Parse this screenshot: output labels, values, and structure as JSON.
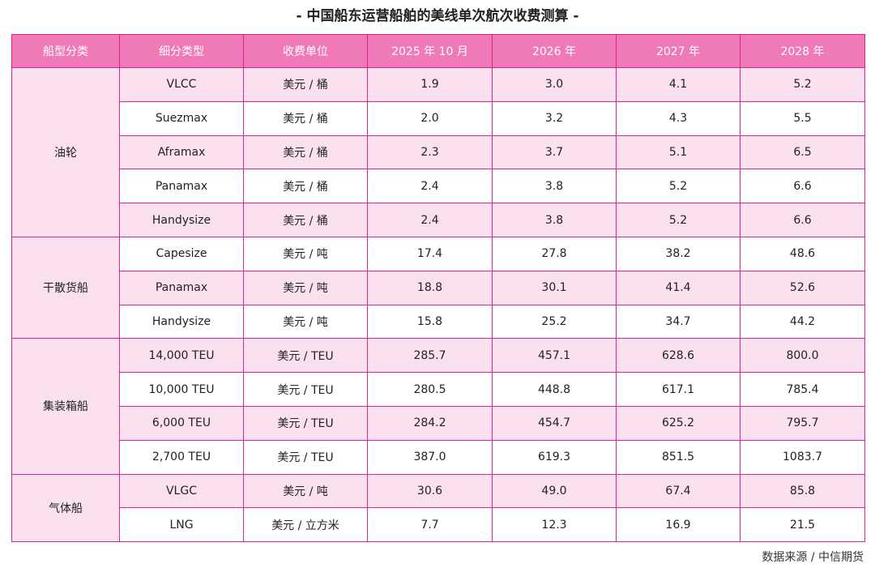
{
  "title": "- 中国船东运营船舶的美线单次航次收费测算 -",
  "headers": [
    "船型分类",
    "细分类型",
    "收费单位",
    "2025 年 10 月",
    "2026 年",
    "2027 年",
    "2028 年"
  ],
  "groups": [
    {
      "category": "油轮",
      "rows": [
        {
          "type": "VLCC",
          "unit": "美元 / 桶",
          "v2025": "1.9",
          "v2026": "3.0",
          "v2027": "4.1",
          "v2028": "5.2"
        },
        {
          "type": "Suezmax",
          "unit": "美元 / 桶",
          "v2025": "2.0",
          "v2026": "3.2",
          "v2027": "4.3",
          "v2028": "5.5"
        },
        {
          "type": "Aframax",
          "unit": "美元 / 桶",
          "v2025": "2.3",
          "v2026": "3.7",
          "v2027": "5.1",
          "v2028": "6.5"
        },
        {
          "type": "Panamax",
          "unit": "美元 / 桶",
          "v2025": "2.4",
          "v2026": "3.8",
          "v2027": "5.2",
          "v2028": "6.6"
        },
        {
          "type": "Handysize",
          "unit": "美元 / 桶",
          "v2025": "2.4",
          "v2026": "3.8",
          "v2027": "5.2",
          "v2028": "6.6"
        }
      ]
    },
    {
      "category": "干散货船",
      "rows": [
        {
          "type": "Capesize",
          "unit": "美元 / 吨",
          "v2025": "17.4",
          "v2026": "27.8",
          "v2027": "38.2",
          "v2028": "48.6"
        },
        {
          "type": "Panamax",
          "unit": "美元 / 吨",
          "v2025": "18.8",
          "v2026": "30.1",
          "v2027": "41.4",
          "v2028": "52.6"
        },
        {
          "type": "Handysize",
          "unit": "美元 / 吨",
          "v2025": "15.8",
          "v2026": "25.2",
          "v2027": "34.7",
          "v2028": "44.2"
        }
      ]
    },
    {
      "category": "集装箱船",
      "rows": [
        {
          "type": "14,000 TEU",
          "unit": "美元 / TEU",
          "v2025": "285.7",
          "v2026": "457.1",
          "v2027": "628.6",
          "v2028": "800.0"
        },
        {
          "type": "10,000 TEU",
          "unit": "美元 / TEU",
          "v2025": "280.5",
          "v2026": "448.8",
          "v2027": "617.1",
          "v2028": "785.4"
        },
        {
          "type": "6,000 TEU",
          "unit": "美元 / TEU",
          "v2025": "284.2",
          "v2026": "454.7",
          "v2027": "625.2",
          "v2028": "795.7"
        },
        {
          "type": "2,700 TEU",
          "unit": "美元 / TEU",
          "v2025": "387.0",
          "v2026": "619.3",
          "v2027": "851.5",
          "v2028": "1083.7"
        }
      ]
    },
    {
      "category": "气体船",
      "rows": [
        {
          "type": "VLGC",
          "unit": "美元 / 吨",
          "v2025": "30.6",
          "v2026": "49.0",
          "v2027": "67.4",
          "v2028": "85.8"
        },
        {
          "type": "LNG",
          "unit": "美元 / 立方米",
          "v2025": "7.7",
          "v2026": "12.3",
          "v2027": "16.9",
          "v2028": "21.5"
        }
      ]
    }
  ],
  "source": "数据来源 / 中信期货",
  "colors": {
    "header_bg": "#f07ab8",
    "row_tint": "#fbe1ef",
    "border": "#d9258f"
  }
}
